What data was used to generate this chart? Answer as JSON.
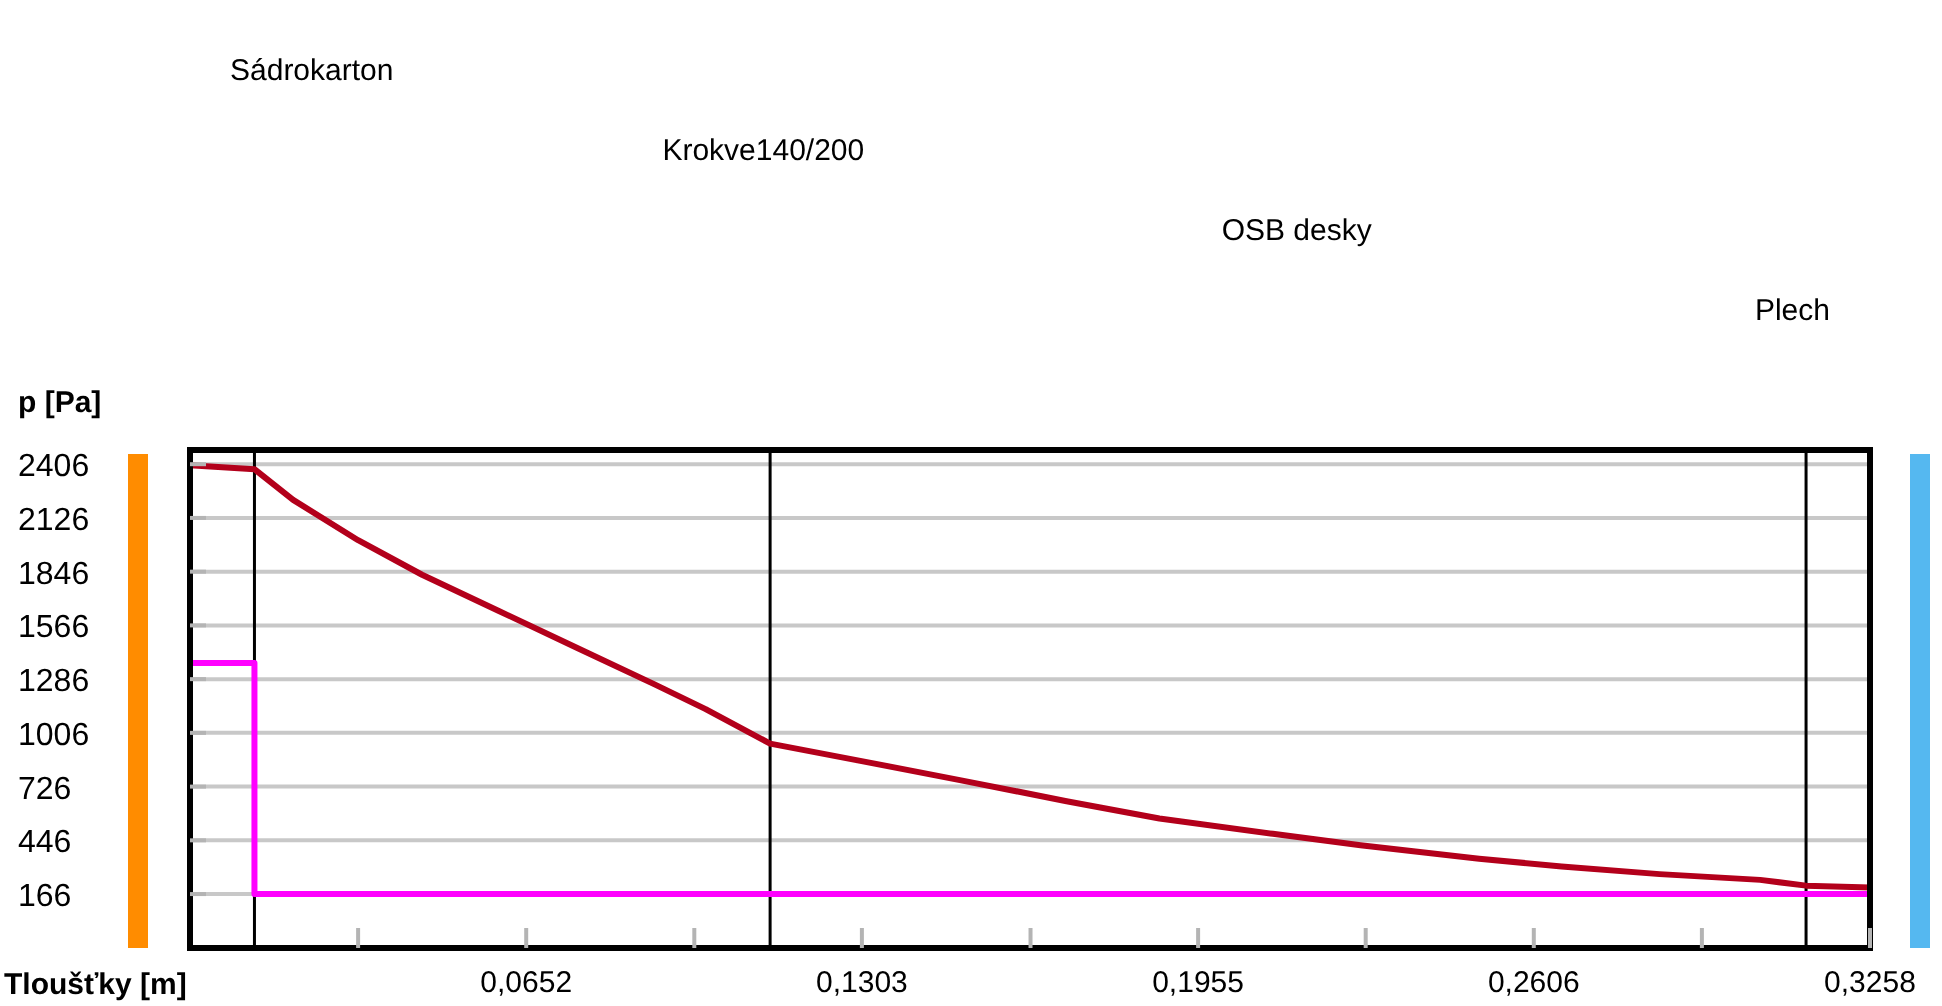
{
  "chart_data": {
    "type": "line",
    "xlabel": "Tloušťky [m]",
    "ylabel": "p [Pa]",
    "xlim": [
      0,
      0.3258
    ],
    "ylim": [
      -115,
      2480
    ],
    "xticks": [
      {
        "value": 0.0326,
        "label": null
      },
      {
        "value": 0.0652,
        "label": "0,0652"
      },
      {
        "value": 0.0978,
        "label": null
      },
      {
        "value": 0.1303,
        "label": "0,1303"
      },
      {
        "value": 0.163,
        "label": null
      },
      {
        "value": 0.1955,
        "label": "0,1955"
      },
      {
        "value": 0.228,
        "label": null
      },
      {
        "value": 0.2606,
        "label": "0,2606"
      },
      {
        "value": 0.2932,
        "label": null
      },
      {
        "value": 0.3258,
        "label": "0,3258"
      }
    ],
    "yticks": [
      166,
      446,
      726,
      1006,
      1286,
      1566,
      1846,
      2126,
      2406
    ],
    "grid": "y",
    "series": [
      {
        "color": "#b3001b",
        "x": [
          0,
          0.0125,
          0.02,
          0.0326,
          0.045,
          0.06,
          0.075,
          0.09,
          0.1,
          0.1125,
          0.13,
          0.1493,
          0.17,
          0.188,
          0.21,
          0.227,
          0.25,
          0.266,
          0.285,
          0.3045,
          0.3134,
          0.3258
        ],
        "values": [
          2400,
          2380,
          2220,
          2010,
          1830,
          1640,
          1450,
          1260,
          1130,
          950,
          860,
          760,
          650,
          560,
          480,
          420,
          350,
          310,
          270,
          240,
          210,
          200
        ]
      },
      {
        "color": "#ff00ff",
        "x": [
          0,
          0.0125,
          0.0125,
          0.3258
        ],
        "values": [
          1370,
          1370,
          166,
          166
        ]
      }
    ],
    "ref_lines": [
      {
        "axis": "x",
        "value": 0.0125,
        "color": "#000000"
      },
      {
        "axis": "x",
        "value": 0.1125,
        "color": "#000000"
      },
      {
        "axis": "x",
        "value": 0.3134,
        "color": "#000000"
      }
    ],
    "annotations": [
      "Sádrokarton",
      "Krokve140/200",
      "OSB desky",
      "Plech"
    ]
  }
}
